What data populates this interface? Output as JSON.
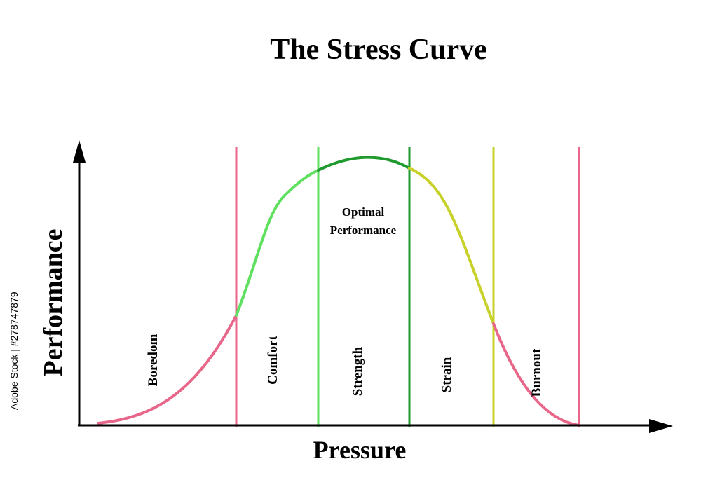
{
  "title": "The Stress Curve",
  "axes": {
    "y_label": "Performance",
    "x_label": "Pressure"
  },
  "zones": [
    "Boredom",
    "Comfort",
    "Strength",
    "Strain",
    "Burnout"
  ],
  "peak_label": [
    "Optimal",
    "Performance"
  ],
  "watermark": "Adobe Stock | #278747879"
}
